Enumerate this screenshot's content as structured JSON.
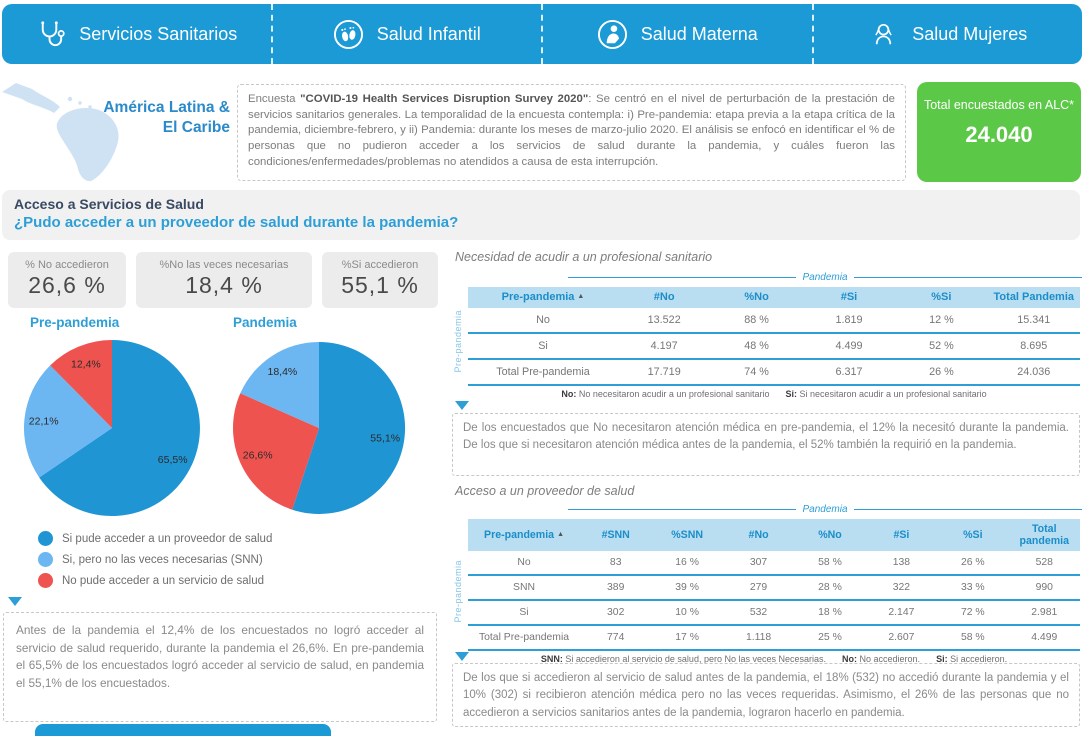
{
  "header": {
    "tabs": [
      {
        "label": "Servicios Sanitarios",
        "icon": "stethoscope"
      },
      {
        "label": "Salud Infantil",
        "icon": "baby-feet"
      },
      {
        "label": "Salud Materna",
        "icon": "mother"
      },
      {
        "label": "Salud Mujeres",
        "icon": "woman"
      }
    ]
  },
  "region": {
    "line1": "América Latina &",
    "line2": "El Caribe"
  },
  "survey_note": {
    "segments": [
      {
        "text": "Encuesta ",
        "bold": false
      },
      {
        "text": "\"COVID-19 Health Services Disruption Survey 2020\"",
        "bold": true
      },
      {
        "text": ": Se centró en el nivel de perturbación de la prestación de servicios sanitarios generales. La temporalidad de la encuesta contempla: i) Pre-pandemia: etapa previa a la etapa crítica de la pandemia, diciembre-febrero, y ii) Pandemia: durante los meses de marzo-julio 2020. El análisis se enfocó en identificar el % de personas que no pudieron acceder a los servicios de salud durante la pandemia, y cuáles fueron las condiciones/enfermedades/problemas no atendidos a causa de esta interrupción.",
        "bold": false
      }
    ]
  },
  "total_box": {
    "label": "Total encuestados en ALC*",
    "value": "24.040",
    "color": "#5cc847"
  },
  "section": {
    "title": "Acceso a Servicios de Salud",
    "question": "¿Pudo acceder a un proveedor de salud durante la pandemia?"
  },
  "stats": [
    {
      "label": "% No accedieron",
      "value": "26,6 %"
    },
    {
      "label": "%No las veces necesarias",
      "value": "18,4 %"
    },
    {
      "label": "%Si accedieron",
      "value": "55,1 %"
    }
  ],
  "chart_data": [
    {
      "type": "pie",
      "title": "Pre-pandemia",
      "slices": [
        {
          "label": "Si pude acceder a un proveedor de salud",
          "value": 65.5,
          "display": "65,5%",
          "color": "#2095d4"
        },
        {
          "label": "Si, pero no las veces necesarias (SNN)",
          "value": 22.1,
          "display": "22,1%",
          "color": "#6cb6f1"
        },
        {
          "label": "No pude acceder a un servicio de salud",
          "value": 12.4,
          "display": "12,4%",
          "color": "#ef5350"
        }
      ]
    },
    {
      "type": "pie",
      "title": "Pandemia",
      "slices": [
        {
          "label": "Si pude acceder a un proveedor de salud",
          "value": 55.1,
          "display": "55,1%",
          "color": "#2095d4"
        },
        {
          "label": "No pude acceder a un servicio de salud",
          "value": 26.6,
          "display": "26,6%",
          "color": "#ef5350"
        },
        {
          "label": "Si, pero no las veces necesarias (SNN)",
          "value": 18.4,
          "display": "18,4%",
          "color": "#6cb6f1"
        }
      ]
    }
  ],
  "legend": [
    {
      "label": "Si pude acceder a un proveedor de salud",
      "color": "#2095d4"
    },
    {
      "label": "Si, pero no las veces necesarias (SNN)",
      "color": "#6cb6f1"
    },
    {
      "label": "No pude acceder a un servicio de salud",
      "color": "#ef5350"
    }
  ],
  "left_note": "Antes de la pandemia el 12,4% de los encuestados no logró acceder al servicio de salud requerido, durante la pandemia el 26,6%. En pre-pandemia el 65,5% de los encuestados logró acceder al servicio de salud, en pandemia el 55,1% de los encuestados.",
  "tables": {
    "t1": {
      "title": "Necesidad de acudir a un profesional sanitario",
      "group_label": "Pandemia",
      "side_label": "Pre-pandemia",
      "sort": "asc",
      "columns": [
        "Pre-pandemia",
        "#No",
        "%No",
        "#Si",
        "%Si",
        "Total Pandemia"
      ],
      "rows": [
        [
          "No",
          "13.522",
          "88 %",
          "1.819",
          "12 %",
          "15.341"
        ],
        [
          "Si",
          "4.197",
          "48 %",
          "4.499",
          "52 %",
          "8.695"
        ],
        [
          "Total Pre-pandemia",
          "17.719",
          "74 %",
          "6.317",
          "26 %",
          "24.036"
        ]
      ],
      "footnotes": [
        {
          "term": "No:",
          "text": " No necesitaron acudir a un profesional sanitario"
        },
        {
          "term": "Si:",
          "text": " Si necesitaron acudir a un profesional sanitario"
        }
      ]
    },
    "t2": {
      "title": "Acceso a un proveedor de salud",
      "group_label": "Pandemia",
      "side_label": "Pre-pandemia",
      "sort": "asc",
      "columns": [
        "Pre-pandemia",
        "#SNN",
        "%SNN",
        "#No",
        "%No",
        "#Si",
        "%Si",
        "Total pandemia"
      ],
      "rows": [
        [
          "No",
          "83",
          "16 %",
          "307",
          "58 %",
          "138",
          "26 %",
          "528"
        ],
        [
          "SNN",
          "389",
          "39 %",
          "279",
          "28 %",
          "322",
          "33 %",
          "990"
        ],
        [
          "Si",
          "302",
          "10 %",
          "532",
          "18 %",
          "2.147",
          "72 %",
          "2.981"
        ],
        [
          "Total Pre-pandemia",
          "774",
          "17 %",
          "1.118",
          "25 %",
          "2.607",
          "58 %",
          "4.499"
        ]
      ],
      "footnotes": [
        {
          "term": "SNN:",
          "text": " Si accedieron al servicio de salud, pero No las veces Necesarias."
        },
        {
          "term": "No:",
          "text": " No accedieron."
        },
        {
          "term": "Si:",
          "text": " Si accedieron."
        }
      ]
    }
  },
  "note_t1": "De los encuestados que No necesitaron atención médica en pre-pandemia, el 12% la necesitó durante la pandemia. De los que si necesitaron atención médica antes de la pandemia, el 52% también la requirió en la pandemia.",
  "note_t2": "De los que si accedieron al servicio de salud antes de la pandemia, el 18% (532) no accedió durante la pandemia y el 10% (302) si recibieron atención médica pero no las veces requeridas. Asimismo, el 26% de las personas que no accedieron a servicios sanitarios antes de la pandemia, lograron hacerlo en pandemia."
}
